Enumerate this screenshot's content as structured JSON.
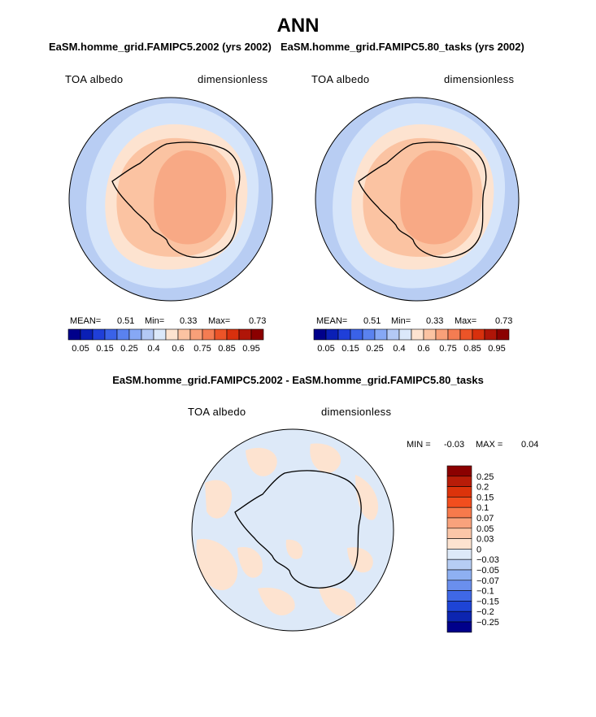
{
  "title": "ANN",
  "panels": [
    {
      "title": "EaSM.homme_grid.FAMIPC5.2002 (yrs 2002)",
      "left_label": "TOA albedo",
      "right_label": "dimensionless",
      "stats": {
        "mean_label": "MEAN=",
        "mean": "0.51",
        "min_label": "Min=",
        "min": "0.33",
        "max_label": "Max=",
        "max": "0.73"
      }
    },
    {
      "title": "EaSM.homme_grid.FAMIPC5.80_tasks (yrs 2002)",
      "left_label": "TOA albedo",
      "right_label": "dimensionless",
      "stats": {
        "mean_label": "MEAN=",
        "mean": "0.51",
        "min_label": "Min=",
        "min": "0.33",
        "max_label": "Max=",
        "max": "0.73"
      }
    }
  ],
  "colorbar": {
    "colors": [
      "#00008b",
      "#0a1fb5",
      "#1f3fd9",
      "#3a62e8",
      "#5a82ef",
      "#86a8f5",
      "#b3c9f5",
      "#dbe8fa",
      "#fde3d0",
      "#fbc3a2",
      "#f8a079",
      "#f47c52",
      "#ec5428",
      "#d8300d",
      "#b01508",
      "#8b0000"
    ],
    "tick_labels": [
      "0.05",
      "0.15",
      "0.25",
      "0.4",
      "0.6",
      "0.75",
      "0.85",
      "0.95"
    ]
  },
  "difference": {
    "title": "EaSM.homme_grid.FAMIPC5.2002 - EaSM.homme_grid.FAMIPC5.80_tasks",
    "left_label": "TOA albedo",
    "right_label": "dimensionless",
    "stats": {
      "min_label": "MIN =",
      "min": "-0.03",
      "max_label": "MAX =",
      "max": "0.04"
    },
    "colorbar": {
      "colors": [
        "#8b0000",
        "#b81c08",
        "#dc330b",
        "#f24e1e",
        "#f77a4c",
        "#f9a27c",
        "#fbc6a8",
        "#fde3d0",
        "#dde9f8",
        "#b6cdf4",
        "#8eb0f2",
        "#6a8fed",
        "#3f68e6",
        "#1e44d6",
        "#0c25b0",
        "#00008b"
      ],
      "tick_labels": [
        "0.25",
        "0.2",
        "0.15",
        "0.1",
        "0.07",
        "0.05",
        "0.03",
        "0",
        "−0.03",
        "−0.05",
        "−0.07",
        "−0.1",
        "−0.15",
        "−0.2",
        "−0.25"
      ]
    }
  },
  "chart_data": [
    {
      "type": "heatmap",
      "title": "EaSM.homme_grid.FAMIPC5.2002 (yrs 2002)",
      "variable": "TOA albedo",
      "units": "dimensionless",
      "projection": "south polar stereographic",
      "mean": 0.51,
      "min": 0.33,
      "max": 0.73,
      "color_levels": [
        0.05,
        0.1,
        0.15,
        0.2,
        0.25,
        0.3,
        0.4,
        0.5,
        0.6,
        0.7,
        0.75,
        0.8,
        0.85,
        0.9,
        0.95
      ]
    },
    {
      "type": "heatmap",
      "title": "EaSM.homme_grid.FAMIPC5.80_tasks (yrs 2002)",
      "variable": "TOA albedo",
      "units": "dimensionless",
      "projection": "south polar stereographic",
      "mean": 0.51,
      "min": 0.33,
      "max": 0.73,
      "color_levels": [
        0.05,
        0.1,
        0.15,
        0.2,
        0.25,
        0.3,
        0.4,
        0.5,
        0.6,
        0.7,
        0.75,
        0.8,
        0.85,
        0.9,
        0.95
      ]
    },
    {
      "type": "heatmap",
      "title": "EaSM.homme_grid.FAMIPC5.2002 - EaSM.homme_grid.FAMIPC5.80_tasks",
      "variable": "TOA albedo",
      "units": "dimensionless",
      "projection": "south polar stereographic",
      "min": -0.03,
      "max": 0.04,
      "color_levels": [
        -0.25,
        -0.2,
        -0.15,
        -0.1,
        -0.07,
        -0.05,
        -0.03,
        0,
        0.03,
        0.05,
        0.07,
        0.1,
        0.15,
        0.2,
        0.25
      ]
    }
  ]
}
